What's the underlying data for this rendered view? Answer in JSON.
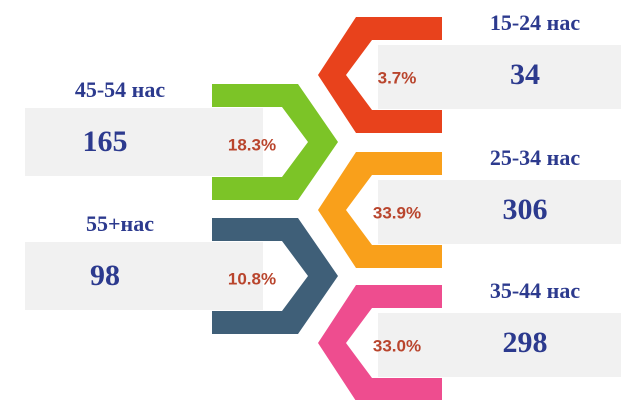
{
  "items": [
    {
      "label": "15-24 нас",
      "count": "34",
      "percent": "3.7%",
      "color": "#e8421c"
    },
    {
      "label": "25-34 нас",
      "count": "306",
      "percent": "33.9%",
      "color": "#f9a01b"
    },
    {
      "label": "35-44 нас",
      "count": "298",
      "percent": "33.0%",
      "color": "#ee4d8f"
    },
    {
      "label": "45-54 нас",
      "count": "165",
      "percent": "18.3%",
      "color": "#7cc427"
    },
    {
      "label": "55+нас",
      "count": "98",
      "percent": "10.8%",
      "color": "#3f5f78"
    }
  ]
}
